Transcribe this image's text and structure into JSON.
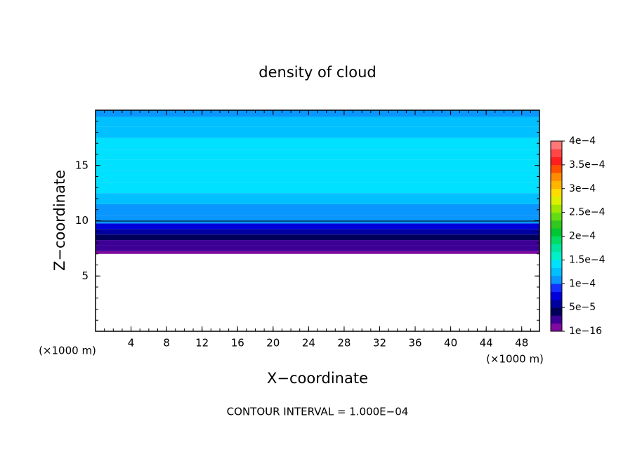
{
  "chart_data": {
    "type": "contour",
    "title": "density of cloud",
    "xlabel": "X−coordinate",
    "ylabel": "Z−coordinate",
    "x_unit_left": "(×1000 m)",
    "x_unit_right": "(×1000 m)",
    "note": "CONTOUR INTERVAL = 1.000E−04",
    "xlim": [
      0,
      50
    ],
    "xticks": [
      4,
      8,
      12,
      16,
      20,
      24,
      28,
      32,
      36,
      40,
      44,
      48
    ],
    "ylim": [
      0,
      20
    ],
    "yticks": [
      5,
      10,
      15
    ],
    "z": [
      7,
      7.5,
      8,
      8.5,
      9,
      9.5,
      10,
      11,
      12,
      13,
      14,
      15,
      16,
      17,
      18,
      19,
      19.8
    ],
    "values": [
      1e-05,
      2e-05,
      3e-05,
      4e-05,
      5e-05,
      7e-05,
      0.0001,
      0.00011,
      0.00012,
      0.000135,
      0.000145,
      0.00015,
      0.000145,
      0.000135,
      0.000125,
      0.00012,
      0.000115
    ],
    "contour_level": 0.0001,
    "colorbar_lim": [
      0,
      0.0004
    ],
    "colorbar_ticks": [
      {
        "value": 1e-16,
        "label": "1e−16"
      },
      {
        "value": 5e-05,
        "label": "5e−5"
      },
      {
        "value": 0.0001,
        "label": "1e−4"
      },
      {
        "value": 0.00015,
        "label": "1.5e−4"
      },
      {
        "value": 0.0002,
        "label": "2e−4"
      },
      {
        "value": 0.00025,
        "label": "2.5e−4"
      },
      {
        "value": 0.0003,
        "label": "3e−4"
      },
      {
        "value": 0.00035,
        "label": "3.5e−4"
      },
      {
        "value": 0.0004,
        "label": "4e−4"
      }
    ],
    "colors": [
      "#7f0aa0",
      "#3c0096",
      "#00005a",
      "#0000a0",
      "#0000dc",
      "#1432ff",
      "#0a96ff",
      "#00c0ff",
      "#00e0ff",
      "#00f0c8",
      "#00e6a0",
      "#00dc64",
      "#00c832",
      "#32c81e",
      "#64dc14",
      "#a0e600",
      "#dcf000",
      "#ffdc00",
      "#ffb400",
      "#ff8c00",
      "#ff5000",
      "#ff1e1e",
      "#ff4646",
      "#ff7878"
    ]
  }
}
